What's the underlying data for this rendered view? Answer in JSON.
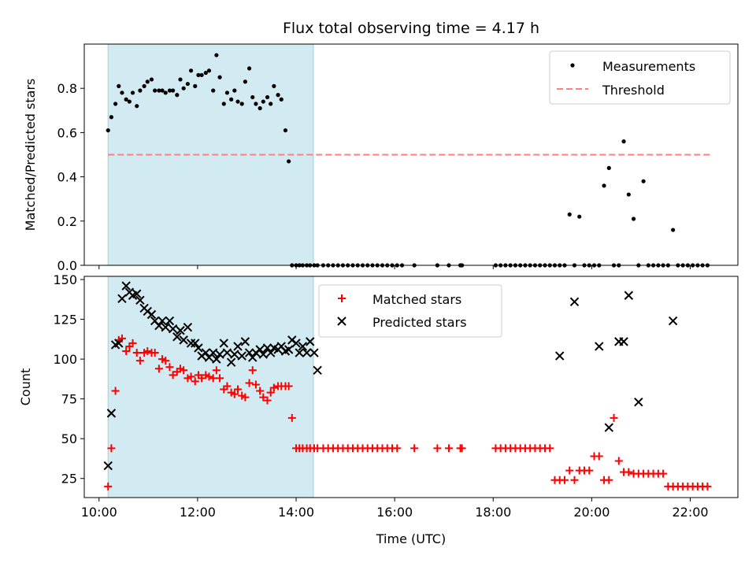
{
  "chart_data": [
    {
      "type": "scatter",
      "title": "Flux total observing time = 4.17 h",
      "ylabel": "Matched/Predicted stars",
      "xlabel": "",
      "xlim": [
        "09:42",
        "22:58"
      ],
      "ylim": [
        0,
        1.0
      ],
      "yticks": [
        0.0,
        0.2,
        0.4,
        0.6,
        0.8
      ],
      "ytick_labels": [
        "0.0",
        "0.2",
        "0.4",
        "0.6",
        "0.8"
      ],
      "x_time_format": "HH:MM",
      "observing_window": {
        "start": "10:11",
        "end": "14:21",
        "color": "#add8e6"
      },
      "legend": {
        "placement": "top-right",
        "entries": [
          {
            "label": "Measurements",
            "marker": "dot",
            "color": "#000000"
          },
          {
            "label": "Threshold",
            "marker": "dashed-line",
            "color": "#ff7f7f"
          }
        ]
      },
      "threshold": {
        "name": "Threshold",
        "value": 0.5,
        "x_start": "10:11",
        "x_end": "22:24",
        "color": "#ff7f7f"
      },
      "series": [
        {
          "name": "Measurements",
          "color": "#000000",
          "x": [
            "10:11",
            "10:15",
            "10:20",
            "10:24",
            "10:28",
            "10:33",
            "10:37",
            "10:41",
            "10:46",
            "10:50",
            "10:55",
            "10:59",
            "11:04",
            "11:08",
            "11:13",
            "11:17",
            "11:21",
            "11:26",
            "11:30",
            "11:35",
            "11:39",
            "11:43",
            "11:48",
            "11:52",
            "11:57",
            "12:01",
            "12:05",
            "12:10",
            "12:14",
            "12:19",
            "12:23",
            "12:27",
            "12:32",
            "12:36",
            "12:41",
            "12:45",
            "12:49",
            "12:54",
            "12:58",
            "13:03",
            "13:07",
            "13:11",
            "13:16",
            "13:20",
            "13:25",
            "13:29",
            "13:33",
            "13:38",
            "13:42",
            "13:47",
            "13:51",
            "13:55",
            "14:00",
            "14:04",
            "14:08",
            "14:13",
            "14:17",
            "14:22",
            "14:26",
            "14:33",
            "14:39",
            "14:45",
            "14:51",
            "14:57",
            "15:03",
            "15:09",
            "15:15",
            "15:21",
            "15:27",
            "15:33",
            "15:39",
            "15:45",
            "15:51",
            "15:57",
            "16:03",
            "16:09",
            "16:24",
            "16:52",
            "17:06",
            "17:20",
            "17:22",
            "18:03",
            "18:09",
            "18:15",
            "18:21",
            "18:27",
            "18:33",
            "18:39",
            "18:45",
            "18:51",
            "18:57",
            "19:03",
            "19:09",
            "19:15",
            "19:21",
            "19:27",
            "19:33",
            "19:39",
            "19:45",
            "19:51",
            "19:57",
            "20:03",
            "20:09",
            "20:15",
            "20:21",
            "20:27",
            "20:33",
            "20:39",
            "20:45",
            "20:51",
            "20:57",
            "21:03",
            "21:09",
            "21:15",
            "21:21",
            "21:27",
            "21:33",
            "21:39",
            "21:45",
            "21:51",
            "21:57",
            "22:03",
            "22:09",
            "22:15",
            "22:21"
          ],
          "y": [
            0.61,
            0.67,
            0.73,
            0.81,
            0.78,
            0.75,
            0.74,
            0.78,
            0.72,
            0.79,
            0.81,
            0.83,
            0.84,
            0.79,
            0.79,
            0.79,
            0.78,
            0.79,
            0.79,
            0.77,
            0.84,
            0.8,
            0.82,
            0.88,
            0.81,
            0.86,
            0.86,
            0.87,
            0.88,
            0.79,
            0.95,
            0.85,
            0.73,
            0.78,
            0.75,
            0.79,
            0.74,
            0.73,
            0.83,
            0.89,
            0.76,
            0.73,
            0.71,
            0.74,
            0.76,
            0.73,
            0.81,
            0.77,
            0.75,
            0.61,
            0.47,
            0.0,
            0.0,
            0.0,
            0.0,
            0.0,
            0.0,
            0.0,
            0.0,
            0.0,
            0.0,
            0.0,
            0.0,
            0.0,
            0.0,
            0.0,
            0.0,
            0.0,
            0.0,
            0.0,
            0.0,
            0.0,
            0.0,
            0.0,
            0.0,
            0.0,
            0.0,
            0.0,
            0.0,
            0.0,
            0.0,
            0.0,
            0.0,
            0.0,
            0.0,
            0.0,
            0.0,
            0.0,
            0.0,
            0.0,
            0.0,
            0.0,
            0.0,
            0.0,
            0.0,
            0.0,
            0.23,
            0.0,
            0.22,
            0.0,
            0.0,
            0.0,
            0.0,
            0.36,
            0.44,
            0.0,
            0.0,
            0.56,
            0.32,
            0.21,
            0.0,
            0.38,
            0.0,
            0.0,
            0.0,
            0.0,
            0.0,
            0.16,
            0.0,
            0.0,
            0.0,
            0.0,
            0.0,
            0.0,
            0.0
          ]
        }
      ]
    },
    {
      "type": "scatter",
      "title": "",
      "xlabel": "Time (UTC)",
      "ylabel": "Count",
      "xlim": [
        "09:42",
        "22:58"
      ],
      "ylim": [
        13,
        152
      ],
      "xticks": [
        "10:00",
        "12:00",
        "14:00",
        "16:00",
        "18:00",
        "20:00",
        "22:00"
      ],
      "yticks": [
        25,
        50,
        75,
        100,
        125,
        150
      ],
      "x_time_format": "HH:MM",
      "observing_window": {
        "start": "10:11",
        "end": "14:21",
        "color": "#add8e6"
      },
      "legend": {
        "placement": "upper-center",
        "entries": [
          {
            "label": "Matched stars",
            "marker": "plus",
            "color": "#ff0000"
          },
          {
            "label": "Predicted stars",
            "marker": "x",
            "color": "#000000"
          }
        ]
      },
      "series": [
        {
          "name": "Matched stars",
          "color": "#ff0000",
          "marker": "plus",
          "x": [
            "10:11",
            "10:15",
            "10:20",
            "10:24",
            "10:28",
            "10:33",
            "10:37",
            "10:41",
            "10:46",
            "10:50",
            "10:55",
            "10:59",
            "11:04",
            "11:08",
            "11:13",
            "11:17",
            "11:21",
            "11:26",
            "11:30",
            "11:35",
            "11:39",
            "11:43",
            "11:48",
            "11:52",
            "11:57",
            "12:01",
            "12:05",
            "12:10",
            "12:14",
            "12:19",
            "12:23",
            "12:27",
            "12:32",
            "12:36",
            "12:41",
            "12:45",
            "12:49",
            "12:54",
            "12:58",
            "13:03",
            "13:07",
            "13:11",
            "13:16",
            "13:20",
            "13:25",
            "13:29",
            "13:33",
            "13:38",
            "13:42",
            "13:47",
            "13:51",
            "13:55",
            "14:00",
            "14:04",
            "14:08",
            "14:13",
            "14:17",
            "14:22",
            "14:26",
            "14:33",
            "14:39",
            "14:45",
            "14:51",
            "14:57",
            "15:03",
            "15:09",
            "15:15",
            "15:21",
            "15:27",
            "15:33",
            "15:39",
            "15:45",
            "15:51",
            "15:57",
            "16:03",
            "16:24",
            "16:52",
            "17:06",
            "17:20",
            "17:22",
            "18:03",
            "18:09",
            "18:15",
            "18:21",
            "18:27",
            "18:33",
            "18:39",
            "18:45",
            "18:51",
            "18:57",
            "19:03",
            "19:09",
            "19:15",
            "19:21",
            "19:27",
            "19:33",
            "19:39",
            "19:45",
            "19:51",
            "19:57",
            "20:03",
            "20:09",
            "20:15",
            "20:21",
            "20:27",
            "20:33",
            "20:39",
            "20:45",
            "20:51",
            "20:57",
            "21:03",
            "21:09",
            "21:15",
            "21:21",
            "21:27",
            "21:33",
            "21:39",
            "21:45",
            "21:51",
            "21:57",
            "22:03",
            "22:09",
            "22:15",
            "22:21"
          ],
          "y": [
            20,
            44,
            80,
            112,
            113,
            105,
            108,
            110,
            104,
            99,
            104,
            105,
            104,
            104,
            94,
            100,
            99,
            95,
            90,
            92,
            94,
            93,
            88,
            89,
            86,
            90,
            88,
            90,
            89,
            88,
            93,
            88,
            81,
            83,
            79,
            78,
            81,
            77,
            76,
            85,
            93,
            84,
            80,
            76,
            74,
            79,
            82,
            83,
            83,
            83,
            83,
            63,
            44,
            44,
            44,
            44,
            44,
            44,
            44,
            44,
            44,
            44,
            44,
            44,
            44,
            44,
            44,
            44,
            44,
            44,
            44,
            44,
            44,
            44,
            44,
            44,
            44,
            44,
            44,
            44,
            44,
            44,
            44,
            44,
            44,
            44,
            44,
            44,
            44,
            44,
            44,
            44,
            24,
            24,
            24,
            30,
            24,
            30,
            30,
            30,
            39,
            39,
            24,
            24,
            63,
            36,
            29,
            29,
            28,
            28,
            28,
            28,
            28,
            28,
            28,
            20,
            20,
            20,
            20,
            20,
            20,
            20,
            20,
            20
          ]
        },
        {
          "name": "Predicted stars",
          "color": "#000000",
          "marker": "x",
          "x": [
            "10:11",
            "10:15",
            "10:20",
            "10:24",
            "10:28",
            "10:33",
            "10:37",
            "10:41",
            "10:46",
            "10:50",
            "10:55",
            "10:59",
            "11:04",
            "11:08",
            "11:13",
            "11:17",
            "11:21",
            "11:26",
            "11:30",
            "11:35",
            "11:39",
            "11:43",
            "11:48",
            "11:52",
            "11:57",
            "12:01",
            "12:05",
            "12:10",
            "12:14",
            "12:19",
            "12:23",
            "12:27",
            "12:32",
            "12:36",
            "12:41",
            "12:45",
            "12:49",
            "12:54",
            "12:58",
            "13:03",
            "13:07",
            "13:11",
            "13:16",
            "13:20",
            "13:25",
            "13:29",
            "13:33",
            "13:38",
            "13:42",
            "13:47",
            "13:51",
            "13:55",
            "14:00",
            "14:04",
            "14:08",
            "14:13",
            "14:17",
            "14:22",
            "14:26",
            "19:21",
            "19:39",
            "20:09",
            "20:21",
            "20:33",
            "20:39",
            "20:45",
            "20:57",
            "21:39"
          ],
          "y": [
            33,
            66,
            109,
            110,
            138,
            146,
            142,
            140,
            141,
            137,
            132,
            130,
            128,
            124,
            121,
            124,
            120,
            124,
            119,
            114,
            118,
            112,
            120,
            110,
            110,
            107,
            102,
            104,
            101,
            104,
            100,
            103,
            110,
            104,
            98,
            103,
            108,
            102,
            111,
            104,
            101,
            104,
            106,
            103,
            107,
            104,
            107,
            106,
            108,
            105,
            106,
            112,
            110,
            104,
            108,
            104,
            111,
            104,
            93,
            102,
            136,
            108,
            57,
            111,
            111,
            140,
            73,
            124
          ]
        }
      ]
    }
  ]
}
